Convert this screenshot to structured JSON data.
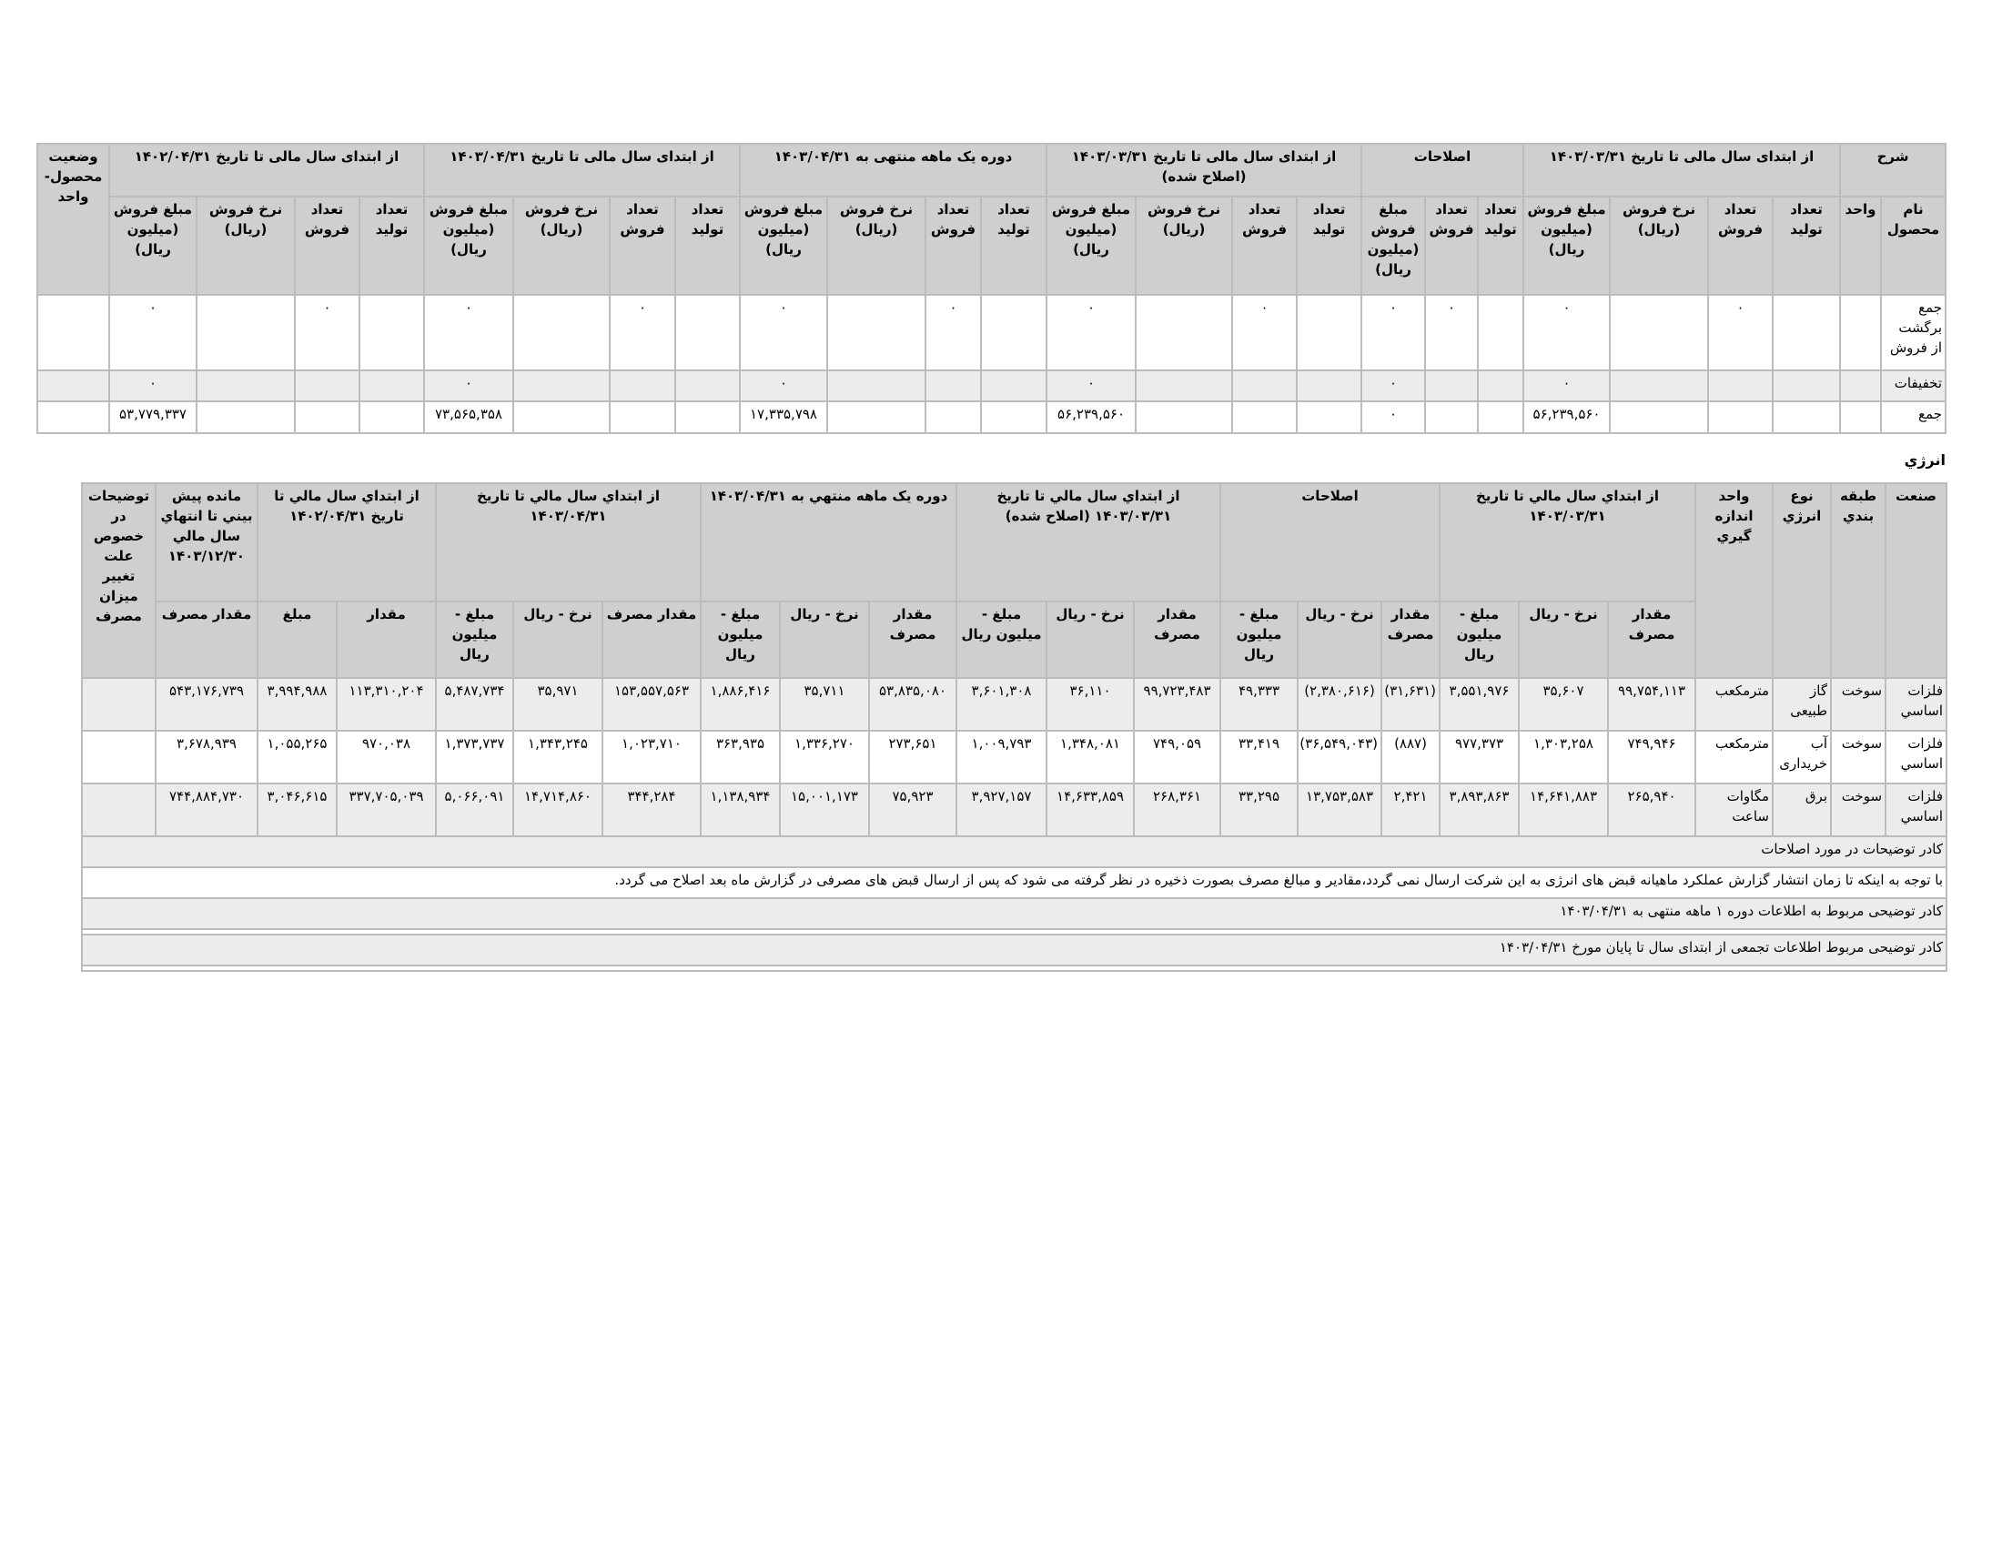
{
  "sales_table": {
    "group_headers": [
      "شرح",
      "از ابتدای سال مالی تا تاریخ ۱۴۰۳/۰۳/۳۱",
      "اصلاحات",
      "از ابتدای سال مالی تا تاریخ ۱۴۰۳/۰۳/۳۱ (اصلاح شده)",
      "دوره یک ماهه منتهی به ۱۴۰۳/۰۴/۳۱",
      "از ابتدای سال مالی تا تاریخ ۱۴۰۳/۰۴/۳۱",
      "از ابتدای سال مالی تا تاریخ ۱۴۰۲/۰۴/۳۱",
      "وضعیت محصول- واحد"
    ],
    "sub_headers": [
      "نام محصول",
      "واحد",
      "تعداد تولید",
      "تعداد فروش",
      "نرخ فروش (ریال)",
      "مبلغ فروش (میلیون ریال)",
      "تعداد تولید",
      "تعداد فروش",
      "مبلغ فروش (میلیون ریال)",
      "تعداد تولید",
      "تعداد فروش",
      "نرخ فروش (ریال)",
      "مبلغ فروش (میلیون ریال)",
      "تعداد تولید",
      "تعداد فروش",
      "نرخ فروش (ریال)",
      "مبلغ فروش (میلیون ریال)",
      "تعداد تولید",
      "تعداد فروش",
      "نرخ فروش (ریال)",
      "مبلغ فروش (میلیون ریال)",
      "تعداد تولید",
      "تعداد فروش",
      "نرخ فروش (ریال)",
      "مبلغ فروش (میلیون ریال)"
    ],
    "rows": [
      [
        "جمع برگشت از فروش",
        "",
        "",
        "۰",
        "",
        "۰",
        "",
        "۰",
        "۰",
        "",
        "۰",
        "",
        "۰",
        "",
        "۰",
        "",
        "۰",
        "",
        "۰",
        "",
        "۰",
        "",
        "۰",
        "",
        "۰",
        ""
      ],
      [
        "تخفیفات",
        "",
        "",
        "",
        "",
        "۰",
        "",
        "",
        "۰",
        "",
        "",
        "",
        "۰",
        "",
        "",
        "",
        "۰",
        "",
        "",
        "",
        "۰",
        "",
        "",
        "",
        "۰",
        ""
      ],
      [
        "جمع",
        "",
        "",
        "",
        "",
        "۵۶,۲۳۹,۵۶۰",
        "",
        "",
        "۰",
        "",
        "",
        "",
        "۵۶,۲۳۹,۵۶۰",
        "",
        "",
        "",
        "۱۷,۳۳۵,۷۹۸",
        "",
        "",
        "",
        "۷۳,۵۶۵,۳۵۸",
        "",
        "",
        "",
        "۵۳,۷۷۹,۳۳۷",
        ""
      ]
    ]
  },
  "energy": {
    "title": "انرژي",
    "group_headers": [
      "صنعت",
      "طبقه بندي",
      "نوع انرژي",
      "واحد اندازه گيري",
      "از ابتداي سال مالي تا تاريخ ۱۴۰۳/۰۳/۳۱",
      "اصلاحات",
      "از ابتداي سال مالي تا تاريخ ۱۴۰۳/۰۳/۳۱ (اصلاح شده)",
      "دوره يک ماهه منتهي به ۱۴۰۳/۰۴/۳۱",
      "از ابتداي سال مالي تا تاريخ ۱۴۰۳/۰۴/۳۱",
      "از ابتداي سال مالي تا تاريخ ۱۴۰۲/۰۴/۳۱",
      "مانده پيش بيني تا انتهاي سال مالي ۱۴۰۳/۱۲/۳۰",
      "توضيحات در خصوص علت تغيير ميزان مصرف"
    ],
    "sub_headers": [
      "مقدار مصرف",
      "نرخ - ريال",
      "مبلغ - ميليون ريال",
      "مقدار مصرف",
      "نرخ - ريال",
      "مبلغ - ميليون ريال",
      "مقدار مصرف",
      "نرخ - ريال",
      "مبلغ - ميليون ريال",
      "مقدار مصرف",
      "نرخ - ريال",
      "مبلغ - ميليون ريال",
      "مقدار مصرف",
      "نرخ - ريال",
      "مبلغ - ميليون ريال",
      "مقدار",
      "مبلغ",
      "مقدار مصرف"
    ],
    "rows": [
      [
        "فلزات اساسي",
        "سوخت",
        "گاز طبیعی",
        "مترمکعب",
        "۹۹,۷۵۴,۱۱۳",
        "۳۵,۶۰۷",
        "۳,۵۵۱,۹۷۶",
        "(۳۱,۶۳۱)",
        "(۲,۳۸۰,۶۱۶)",
        "۴۹,۳۳۳",
        "۹۹,۷۲۳,۴۸۳",
        "۳۶,۱۱۰",
        "۳,۶۰۱,۳۰۸",
        "۵۳,۸۳۵,۰۸۰",
        "۳۵,۷۱۱",
        "۱,۸۸۶,۴۱۶",
        "۱۵۳,۵۵۷,۵۶۳",
        "۳۵,۹۷۱",
        "۵,۴۸۷,۷۳۴",
        "۱۱۳,۳۱۰,۲۰۴",
        "۳,۹۹۴,۹۸۸",
        "۵۴۳,۱۷۶,۷۳۹",
        ""
      ],
      [
        "فلزات اساسي",
        "سوخت",
        "آب خریداری",
        "مترمکعب",
        "۷۴۹,۹۴۶",
        "۱,۳۰۳,۲۵۸",
        "۹۷۷,۳۷۳",
        "(۸۸۷)",
        "(۳۶,۵۴۹,۰۴۳)",
        "۳۳,۴۱۹",
        "۷۴۹,۰۵۹",
        "۱,۳۴۸,۰۸۱",
        "۱,۰۰۹,۷۹۳",
        "۲۷۳,۶۵۱",
        "۱,۳۳۶,۲۷۰",
        "۳۶۳,۹۳۵",
        "۱,۰۲۳,۷۱۰",
        "۱,۳۴۳,۲۴۵",
        "۱,۳۷۳,۷۳۷",
        "۹۷۰,۰۳۸",
        "۱,۰۵۵,۲۶۵",
        "۳,۶۷۸,۹۳۹",
        ""
      ],
      [
        "فلزات اساسي",
        "سوخت",
        "برق",
        "مگاوات ساعت",
        "۲۶۵,۹۴۰",
        "۱۴,۶۴۱,۸۸۳",
        "۳,۸۹۳,۸۶۳",
        "۲,۴۲۱",
        "۱۳,۷۵۳,۵۸۳",
        "۳۳,۲۹۵",
        "۲۶۸,۳۶۱",
        "۱۴,۶۳۳,۸۵۹",
        "۳,۹۲۷,۱۵۷",
        "۷۵,۹۲۳",
        "۱۵,۰۰۱,۱۷۳",
        "۱,۱۳۸,۹۳۴",
        "۳۴۴,۲۸۴",
        "۱۴,۷۱۴,۸۶۰",
        "۵,۰۶۶,۰۹۱",
        "۳۳۷,۷۰۵,۰۳۹",
        "۳,۰۴۶,۶۱۵",
        "۷۴۴,۸۸۴,۷۳۰",
        ""
      ]
    ],
    "notes": {
      "corrections_label": "کادر توضیحات در مورد اصلاحات",
      "corrections_text": "با توجه به اینکه تا زمان انتشار گزارش عملکرد ماهیانه قبض های انرژی به این شرکت ارسال نمی گردد،مقادیر و مبالغ مصرف بصورت ذخیره در نظر گرفته می شود که پس از ارسال قبض های مصرفی در گزارش ماه بعد اصلاح می گردد.",
      "monthly_label": "کادر توضیحی مربوط به اطلاعات دوره ۱ ماهه منتهی به ۱۴۰۳/۰۴/۳۱",
      "cumulative_label": "کادر توضیحی مربوط اطلاعات تجمعی از ابتدای سال تا پایان مورخ ۱۴۰۳/۰۴/۳۱"
    }
  }
}
